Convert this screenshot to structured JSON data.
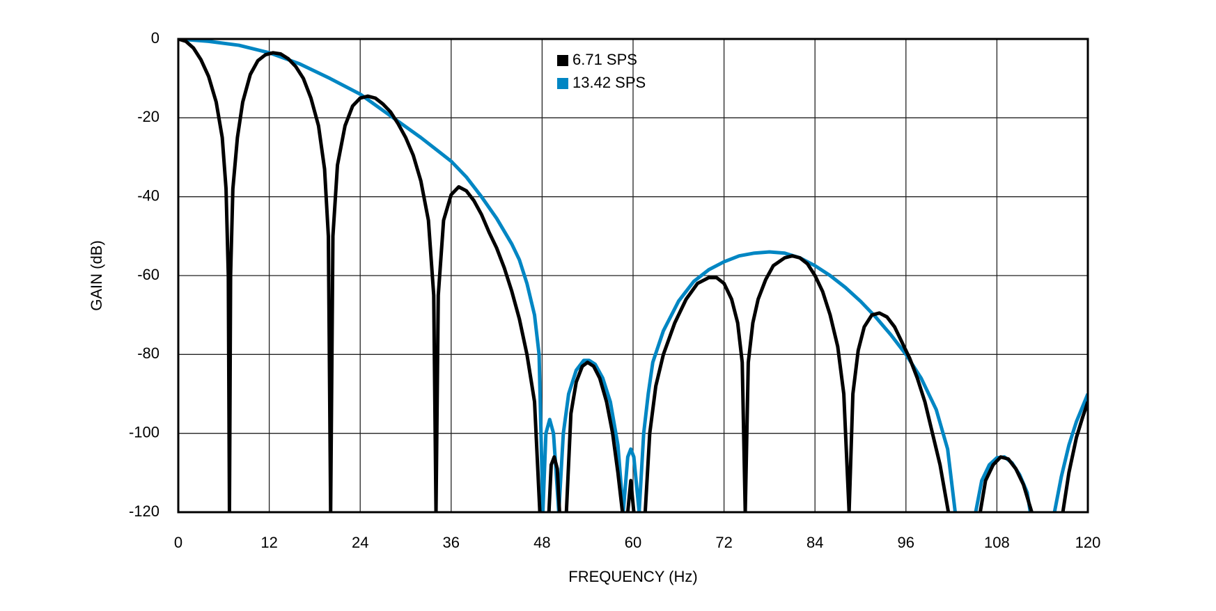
{
  "chart_data": {
    "type": "line",
    "xlabel": "FREQUENCY (Hz)",
    "ylabel": "GAIN (dB)",
    "xlim": [
      0,
      120
    ],
    "xticks": [
      0,
      12,
      24,
      36,
      48,
      60,
      72,
      84,
      96,
      108,
      120
    ],
    "ylim": [
      -120,
      0
    ],
    "yticks": [
      0,
      -20,
      -40,
      -60,
      -80,
      -100,
      -120
    ],
    "grid": true,
    "legend": "top",
    "series": [
      {
        "name": "6.71 SPS",
        "color": "#000000",
        "x": [
          0,
          1,
          2,
          3,
          4,
          5,
          5.8,
          6.3,
          6.6,
          6.75,
          6.9,
          7.2,
          7.8,
          8.5,
          9.5,
          10.5,
          11.5,
          12.5,
          13.5,
          14.5,
          15.5,
          16.5,
          17.5,
          18.5,
          19.3,
          19.8,
          20.1,
          20.4,
          21,
          22,
          23,
          24,
          25,
          26,
          27,
          28,
          29,
          30,
          31,
          32,
          33,
          33.7,
          34,
          34.3,
          35,
          36,
          37,
          38,
          39,
          40,
          41,
          42,
          43,
          44,
          45,
          46,
          47,
          47.7,
          48.3,
          48.9,
          49.2,
          49.6,
          50,
          50.3,
          50.8,
          51.2,
          51.8,
          52.5,
          53.3,
          54,
          54.8,
          55.6,
          56.5,
          57.3,
          58,
          58.6,
          59,
          59.3,
          59.7,
          60.1,
          60.9,
          61.6,
          62.2,
          63,
          64,
          65.5,
          67,
          68.5,
          70,
          71,
          72,
          73,
          73.8,
          74.4,
          74.8,
          75.2,
          75.8,
          76.5,
          77.5,
          78.5,
          80,
          81,
          82,
          83,
          84,
          85,
          86,
          87,
          87.8,
          88.5,
          89,
          89.7,
          90.5,
          91.5,
          92.5,
          93.5,
          94.5,
          95.5,
          96.5,
          97.5,
          98.5,
          99.5,
          100.5,
          101.6,
          104,
          105.8,
          106.5,
          107.5,
          108.5,
          109.5,
          110.5,
          111.5,
          112.6,
          114.5,
          116.7,
          117.5,
          118.5,
          119.3,
          120
        ],
        "values": [
          0,
          -0.6,
          -2.3,
          -5.3,
          -9.5,
          -16,
          -25,
          -38,
          -60,
          -120,
          -60,
          -38,
          -25,
          -16,
          -9,
          -5.5,
          -4,
          -3.5,
          -3.8,
          -5,
          -7,
          -10,
          -15,
          -22,
          -33,
          -50,
          -120,
          -50,
          -32,
          -22,
          -17,
          -15,
          -14.5,
          -15,
          -16.5,
          -18.5,
          -21.5,
          -25,
          -29.5,
          -36,
          -46,
          -65,
          -120,
          -65,
          -46,
          -39.5,
          -37.5,
          -38.5,
          -41,
          -44.5,
          -49,
          -53,
          -58,
          -64,
          -71,
          -80,
          -92,
          -120,
          null,
          -120,
          -108,
          -106,
          -109,
          -120,
          null,
          -120,
          -95,
          -87,
          -83,
          -82,
          -83,
          -86,
          -92,
          -100,
          -110,
          -120,
          null,
          -120,
          -112,
          -120,
          null,
          -120,
          -100,
          -88,
          -80,
          -72,
          -66,
          -62,
          -60.5,
          -60.5,
          -62,
          -66,
          -72,
          -82,
          -120,
          -82,
          -72,
          -66,
          -61,
          -57.5,
          -55.5,
          -55,
          -55.5,
          -57,
          -60,
          -64,
          -70,
          -78,
          -90,
          -120,
          -90,
          -79,
          -73,
          -70,
          -69.5,
          -70.5,
          -73,
          -77,
          -81,
          -86,
          -92,
          -100,
          -108,
          -120,
          null,
          -120,
          -112,
          -108,
          -106,
          -106.5,
          -109,
          -113,
          -120,
          null,
          -120,
          -110,
          -101,
          -96,
          -92
        ]
      },
      {
        "name": "13.42 SPS",
        "color": "#0086c3",
        "x": [
          0,
          4,
          8,
          12,
          16,
          20,
          24,
          28,
          32,
          36,
          38,
          40,
          42,
          44,
          45,
          46,
          47,
          47.6,
          48.1,
          48.5,
          49,
          49.5,
          50.2,
          50.8,
          51.5,
          52.5,
          53.5,
          54.2,
          55,
          56,
          57,
          58,
          58.7,
          59.3,
          59.7,
          60.1,
          60.8,
          61.4,
          62,
          62.6,
          64,
          66,
          68,
          70,
          72,
          74,
          76,
          78,
          80,
          82,
          84,
          86,
          88,
          90,
          92,
          94,
          96,
          98,
          100,
          101.5,
          102.5,
          104,
          105.2,
          106,
          107,
          108,
          109,
          110,
          111,
          112,
          112.4,
          114,
          115.6,
          116.5,
          117.5,
          118.5,
          120
        ],
        "values": [
          0,
          -0.6,
          -1.6,
          -3.5,
          -6.3,
          -10,
          -14,
          -19.5,
          -25,
          -31,
          -35,
          -40,
          -45.5,
          -52,
          -56,
          -62,
          -70,
          -80,
          -120,
          -100,
          -96.5,
          -100,
          -120,
          -100,
          -90,
          -84,
          -81.5,
          -81.5,
          -82.5,
          -86,
          -92,
          -103,
          -120,
          -106,
          -104,
          -106,
          -120,
          -100,
          -90,
          -82,
          -74,
          -66.5,
          -61.5,
          -58.5,
          -56.5,
          -55,
          -54.3,
          -54,
          -54.3,
          -55.5,
          -57.5,
          -60,
          -63,
          -66.5,
          -70.5,
          -75,
          -80,
          -86,
          -94,
          -104,
          -120,
          null,
          -120,
          -112,
          -108,
          -106.2,
          -106,
          -107.5,
          -110.5,
          -115,
          -120,
          null,
          -120,
          -111,
          -103,
          -97,
          -90
        ]
      }
    ]
  }
}
